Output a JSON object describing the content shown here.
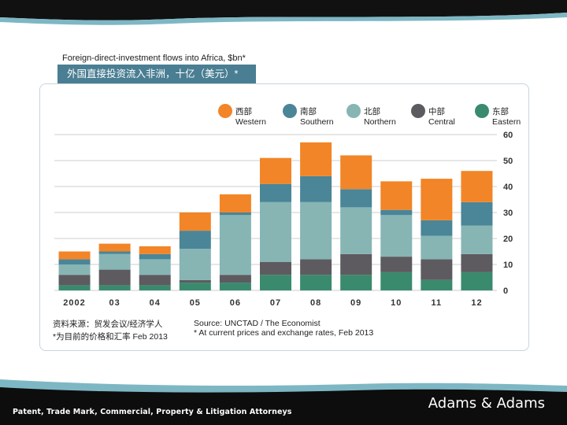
{
  "header": {
    "title_en": "Foreign-direct-investment flows into Africa, $bn*",
    "title_zh": "外国直接投资流入非洲，十亿（美元）*"
  },
  "footer": {
    "tagline": "Patent, Trade Mark, Commercial, Property & Litigation Attorneys",
    "brand": "Adams & Adams"
  },
  "source": {
    "zh_line1": "资料来源：贸发会议/经济学人",
    "zh_line2": "*为目前的价格和汇率 Feb 2013",
    "en_line1": "Source:  UNCTAD / The Economist",
    "en_line2": "* At current prices and exchange rates, Feb 2013"
  },
  "colors": {
    "western": "#f28527",
    "southern": "#4a8598",
    "northern": "#86b5b4",
    "central": "#5d5b5f",
    "eastern": "#3a8a6e",
    "grid": "#cccccc",
    "axis_text": "#333333",
    "band_dark": "#111111",
    "band_teal": "#7eb7c4"
  },
  "chart_data": {
    "type": "bar",
    "stacked": true,
    "title": "Foreign-direct-investment flows into Africa, $bn*",
    "xlabel": "",
    "ylabel": "",
    "ylim": [
      0,
      60
    ],
    "yticks": [
      "60",
      "50",
      "40",
      "30",
      "20",
      "10",
      "0"
    ],
    "ytick_values": [
      60,
      50,
      40,
      30,
      20,
      10,
      0
    ],
    "y_axis_side": "right",
    "grid": true,
    "legend_position": "top",
    "categories": [
      "2002",
      "03",
      "04",
      "05",
      "06",
      "07",
      "08",
      "09",
      "10",
      "11",
      "12"
    ],
    "series": [
      {
        "key": "eastern",
        "name_zh": "东部",
        "name": "Eastern",
        "values": [
          2,
          2,
          2,
          3,
          3,
          6,
          6,
          6,
          7,
          4,
          7
        ]
      },
      {
        "key": "central",
        "name_zh": "中部",
        "name": "Central",
        "values": [
          4,
          6,
          4,
          1,
          3,
          5,
          6,
          8,
          6,
          8,
          7
        ]
      },
      {
        "key": "northern",
        "name_zh": "北部",
        "name": "Northern",
        "values": [
          4,
          6,
          6,
          12,
          23,
          23,
          22,
          18,
          16,
          9,
          11
        ]
      },
      {
        "key": "southern",
        "name_zh": "南部",
        "name": "Southern",
        "values": [
          2,
          1,
          2,
          7,
          1,
          7,
          10,
          7,
          2,
          6,
          9
        ]
      },
      {
        "key": "western",
        "name_zh": "西部",
        "name": "Western",
        "values": [
          3,
          3,
          3,
          7,
          7,
          10,
          13,
          13,
          11,
          16,
          12
        ]
      }
    ],
    "legend_order": [
      "western",
      "southern",
      "northern",
      "central",
      "eastern"
    ]
  }
}
